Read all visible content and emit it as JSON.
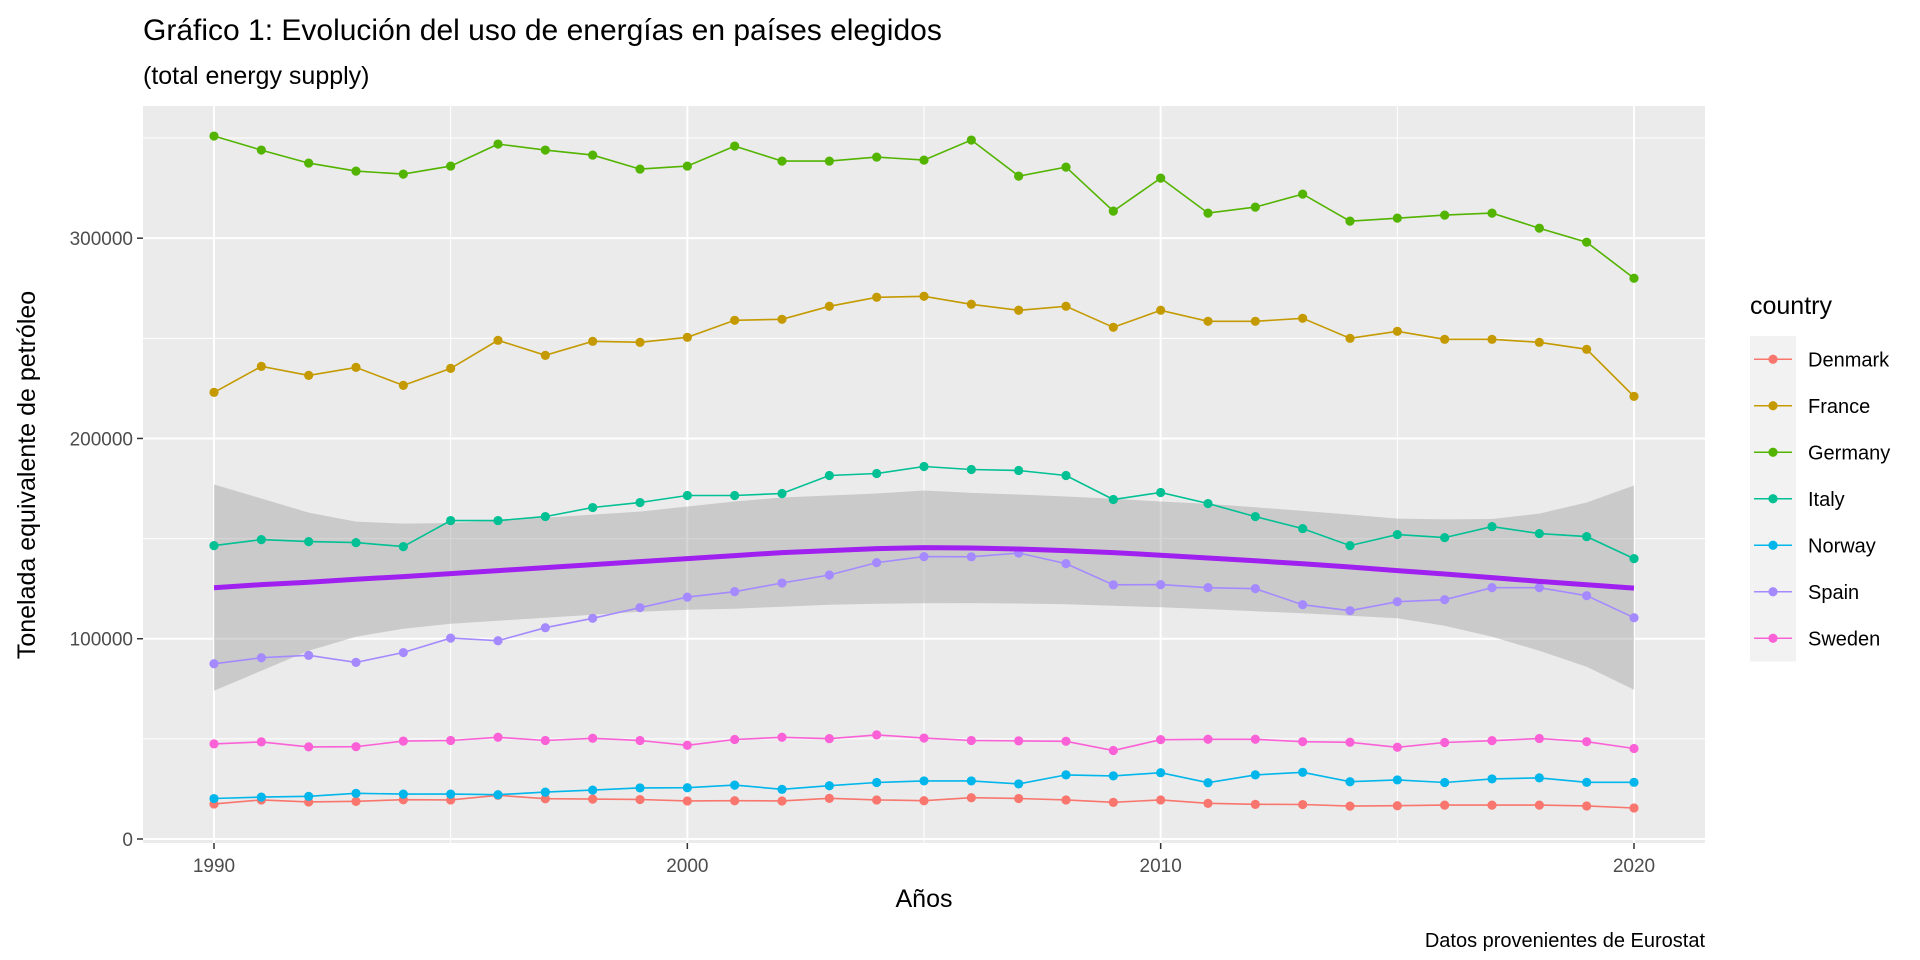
{
  "chart_data": {
    "type": "line",
    "title": "Gráfico 1: Evolución del uso de energías en países elegidos",
    "subtitle": "(total energy supply)",
    "xlabel": "Años",
    "ylabel": "Tonelada equivalente de petróleo",
    "caption": "Datos provenientes de Eurostat",
    "legend_title": "country",
    "legend_position": "right",
    "grid": true,
    "xlim": [
      1988.5,
      2021.5
    ],
    "ylim": [
      -2000,
      366000
    ],
    "x_ticks": [
      1990,
      2000,
      2010,
      2020
    ],
    "x_tick_labels": [
      "1990",
      "2000",
      "2010",
      "2020"
    ],
    "y_ticks": [
      0,
      100000,
      200000,
      300000
    ],
    "y_tick_labels": [
      "0",
      "100000",
      "200000",
      "300000"
    ],
    "x": [
      1990,
      1991,
      1992,
      1993,
      1994,
      1995,
      1996,
      1997,
      1998,
      1999,
      2000,
      2001,
      2002,
      2003,
      2004,
      2005,
      2006,
      2007,
      2008,
      2009,
      2010,
      2011,
      2012,
      2013,
      2014,
      2015,
      2016,
      2017,
      2018,
      2019,
      2020
    ],
    "series": [
      {
        "name": "Denmark",
        "color": "#F8766D",
        "values": [
          17500,
          19500,
          18500,
          18800,
          19600,
          19500,
          21800,
          20100,
          19900,
          19700,
          19000,
          19100,
          19000,
          20300,
          19500,
          19100,
          20600,
          20200,
          19500,
          18300,
          19500,
          17800,
          17300,
          17200,
          16400,
          16600,
          16900,
          16900,
          16900,
          16500,
          15500
        ]
      },
      {
        "name": "France",
        "color": "#C49A00",
        "values": [
          223000,
          236000,
          231500,
          235500,
          226500,
          235000,
          249000,
          241500,
          248500,
          248000,
          250500,
          259000,
          259500,
          266000,
          270500,
          271000,
          267000,
          264000,
          266000,
          255500,
          264000,
          258500,
          258500,
          260000,
          250000,
          253500,
          249500,
          249500,
          248000,
          244500,
          221000
        ]
      },
      {
        "name": "Germany",
        "color": "#53B400",
        "values": [
          351000,
          344000,
          337500,
          333500,
          332000,
          336000,
          347000,
          344000,
          341500,
          334500,
          336000,
          346000,
          338500,
          338500,
          340500,
          339000,
          349000,
          331000,
          335500,
          313500,
          330000,
          312500,
          315500,
          322000,
          308500,
          310000,
          311500,
          312500,
          305000,
          298000,
          280000
        ]
      },
      {
        "name": "Italy",
        "color": "#00C094",
        "values": [
          146500,
          149500,
          148500,
          148000,
          146000,
          159000,
          159000,
          161000,
          165500,
          168000,
          171500,
          171500,
          172500,
          181500,
          182500,
          186000,
          184500,
          184000,
          181500,
          169500,
          173000,
          167500,
          161000,
          155000,
          146500,
          152000,
          150500,
          156000,
          152500,
          151000,
          140000
        ]
      },
      {
        "name": "Norway",
        "color": "#00B6EB",
        "values": [
          20200,
          20900,
          21300,
          22800,
          22400,
          22400,
          22100,
          23400,
          24400,
          25500,
          25600,
          26900,
          24800,
          26600,
          28200,
          29000,
          29000,
          27500,
          32000,
          31500,
          33100,
          28100,
          32000,
          33300,
          28600,
          29500,
          28200,
          30000,
          30500,
          28300,
          28300
        ]
      },
      {
        "name": "Spain",
        "color": "#A58AFF",
        "values": [
          87500,
          90500,
          91700,
          88200,
          93100,
          100300,
          99000,
          105500,
          110200,
          115500,
          120800,
          123500,
          127800,
          131800,
          138000,
          141000,
          140900,
          142800,
          137500,
          126900,
          127000,
          125500,
          125000,
          117000,
          114000,
          118500,
          119500,
          125500,
          125500,
          121500,
          110500
        ]
      },
      {
        "name": "Sweden",
        "color": "#FB61D7",
        "values": [
          47500,
          48500,
          46000,
          46100,
          48900,
          49200,
          50800,
          49200,
          50300,
          49200,
          46800,
          49700,
          50800,
          50100,
          52000,
          50400,
          49200,
          49000,
          48800,
          44200,
          49600,
          49800,
          49800,
          48600,
          48300,
          45800,
          48200,
          49100,
          50200,
          48600,
          45200
        ]
      }
    ],
    "smooth": {
      "color": "#A020F0",
      "fit": [
        125500,
        127000,
        128200,
        129700,
        131000,
        132500,
        134000,
        135500,
        137000,
        138500,
        140000,
        141500,
        143000,
        144000,
        145000,
        145500,
        145300,
        144800,
        144000,
        143000,
        141700,
        140300,
        138900,
        137400,
        135800,
        134000,
        132300,
        130500,
        128600,
        126900,
        125300
      ],
      "lower": [
        74000,
        84000,
        94000,
        101000,
        105000,
        107500,
        109000,
        110500,
        112000,
        113500,
        114500,
        115000,
        116000,
        117000,
        117500,
        117700,
        117800,
        117600,
        117200,
        116500,
        115700,
        114800,
        113700,
        112700,
        111500,
        110200,
        106500,
        101000,
        94000,
        86000,
        74500
      ],
      "upper": [
        177000,
        170000,
        163000,
        158500,
        157500,
        157800,
        159000,
        160500,
        162000,
        163500,
        166000,
        168500,
        170500,
        171500,
        172500,
        174000,
        172800,
        172000,
        171000,
        169900,
        168500,
        167300,
        165600,
        163800,
        162000,
        160000,
        159600,
        159800,
        162500,
        168000,
        176500
      ]
    }
  }
}
